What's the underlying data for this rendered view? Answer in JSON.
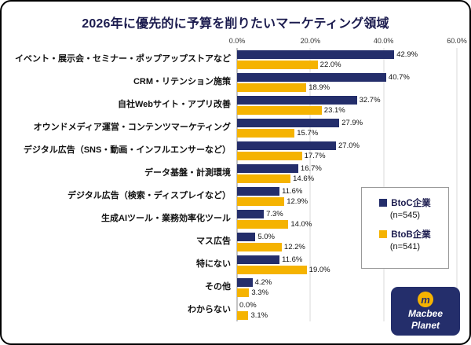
{
  "title": "2026年に優先的に予算を削りたいマーケティング領域",
  "colors": {
    "btoc": "#242e6b",
    "btob": "#f5b301",
    "grid": "#d8d8d8",
    "title_text": "#1b1b4e"
  },
  "legend": {
    "items": [
      {
        "label": "BtoC企業",
        "sub": "(n=545)",
        "color": "#242e6b"
      },
      {
        "label": "BtoB企業",
        "sub": "(n=541)",
        "color": "#f5b301"
      }
    ]
  },
  "logo": {
    "line1": "Macbee",
    "line2": "Planet",
    "mark": "m"
  },
  "chart_data": {
    "type": "bar",
    "orientation": "horizontal",
    "title": "2026年に優先的に予算を削りたいマーケティング領域",
    "categories": [
      "イベント・展示会・セミナー・ポップアップストアなど",
      "CRM・リテンション施策",
      "自社Webサイト・アプリ改善",
      "オウンドメディア運営・コンテンツマーケティング",
      "デジタル広告（SNS・動画・インフルエンサーなど）",
      "データ基盤・計測環境",
      "デジタル広告（検索・ディスプレイなど）",
      "生成AIツール・業務効率化ツール",
      "マス広告",
      "特にない",
      "その他",
      "わからない"
    ],
    "series": [
      {
        "name": "BtoC企業（n=545）",
        "key": "btoc",
        "color": "#242e6b",
        "values": [
          42.9,
          40.7,
          32.7,
          27.9,
          27.0,
          16.7,
          11.6,
          7.3,
          5.0,
          11.6,
          4.2,
          0.0
        ]
      },
      {
        "name": "BtoB企業（n=541）",
        "key": "btob",
        "color": "#f5b301",
        "values": [
          22.0,
          18.9,
          23.1,
          15.7,
          17.7,
          14.6,
          12.9,
          14.0,
          12.2,
          19.0,
          3.3,
          3.1
        ]
      }
    ],
    "xlim": [
      0,
      60
    ],
    "x_ticks": [
      "0.0%",
      "20.0%",
      "40.0%",
      "60.0%"
    ],
    "x_tick_values": [
      0,
      20,
      40,
      60
    ],
    "value_label_suffix": "%",
    "grid": true,
    "legend_position": "right-overlay"
  }
}
